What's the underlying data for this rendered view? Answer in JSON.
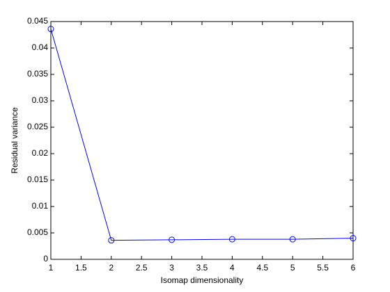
{
  "chart_data": {
    "type": "line",
    "xlabel": "Isomap dimensionality",
    "ylabel": "Residual variance",
    "x": [
      1,
      2,
      3,
      4,
      5,
      6
    ],
    "series": [
      {
        "color": "#0000ff",
        "values": [
          0.0436,
          0.0036,
          0.0037,
          0.0038,
          0.0038,
          0.004
        ]
      }
    ],
    "xlim": [
      1,
      6
    ],
    "xticks": [
      1,
      1.5,
      2,
      2.5,
      3,
      3.5,
      4,
      4.5,
      5,
      5.5,
      6
    ],
    "ylim": [
      0,
      0.045
    ],
    "yticks": [
      0,
      0.005,
      0.01,
      0.015,
      0.02,
      0.025,
      0.03,
      0.035,
      0.04,
      0.045
    ],
    "grid": false,
    "marker": "circle"
  }
}
